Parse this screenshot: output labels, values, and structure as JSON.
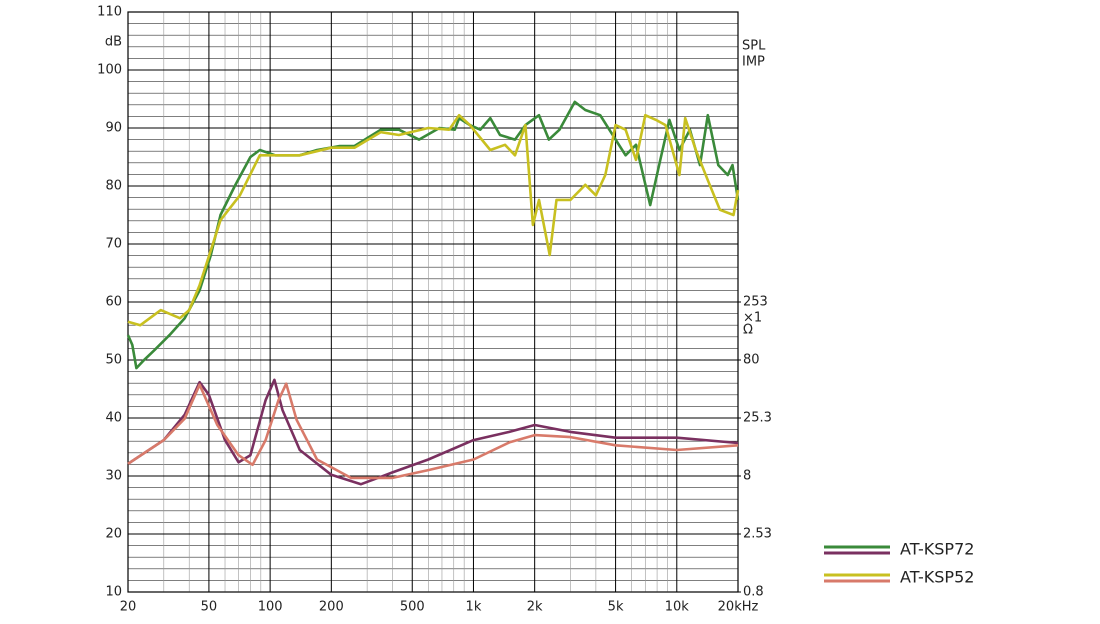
{
  "chart_data": {
    "type": "line",
    "xlog": true,
    "y2log": true,
    "grid": true,
    "xlim": [
      20,
      20000
    ],
    "ylim": [
      10,
      110
    ],
    "y2lim": [
      0.8,
      80000
    ],
    "ylabel": "dB",
    "y2label": "×1",
    "y2unit": "Ω",
    "axis_labels": [
      {
        "text": "SPL",
        "color": "#2f5f8f"
      },
      {
        "text": "IMP",
        "color": "#c89a60"
      }
    ],
    "yticks": [
      10,
      20,
      30,
      40,
      50,
      60,
      70,
      80,
      90,
      100,
      110
    ],
    "yminorticks": [
      12,
      14,
      16,
      18,
      22,
      24,
      26,
      28,
      32,
      34,
      36,
      38,
      42,
      44,
      46,
      48,
      52,
      54,
      56,
      58,
      62,
      64,
      66,
      68,
      72,
      74,
      76,
      78,
      82,
      84,
      86,
      88,
      92,
      94,
      96,
      98,
      102,
      104,
      106,
      108
    ],
    "y2ticks": [
      0.8,
      2.53,
      8,
      25.3,
      80,
      253
    ],
    "xticks": [
      20,
      50,
      100,
      200,
      500,
      {
        "value": 1000,
        "label": "1k"
      },
      {
        "value": 2000,
        "label": "2k"
      },
      {
        "value": 5000,
        "label": "5k"
      },
      {
        "value": 10000,
        "label": "10k"
      },
      {
        "value": 20000,
        "label": "20kHz"
      }
    ],
    "xminorticks": [
      30,
      40,
      60,
      70,
      80,
      90,
      300,
      400,
      600,
      700,
      800,
      900,
      3000,
      4000,
      6000,
      7000,
      8000,
      9000
    ],
    "series": [
      {
        "name": "AT-KSP72",
        "color": "#3a8a3a",
        "x": [
          20,
          21,
          22,
          24,
          27,
          32,
          38,
          45,
          51,
          57,
          67,
          80,
          89,
          106,
          140,
          170,
          220,
          260,
          350,
          430,
          540,
          680,
          810,
          850,
          960,
          1080,
          1210,
          1350,
          1600,
          1800,
          2100,
          2350,
          2650,
          3150,
          3550,
          4200,
          5000,
          5600,
          6300,
          7400,
          8300,
          9200,
          10300,
          11600,
          13000,
          14200,
          16000,
          17800,
          18800,
          20000
        ],
        "values": [
          54.3,
          52.6,
          48.6,
          50,
          51.7,
          54.3,
          57.2,
          62,
          68,
          75,
          80,
          85,
          86.2,
          85.3,
          85.3,
          86.2,
          86.9,
          86.9,
          89.7,
          89.7,
          88,
          90,
          89.7,
          91.7,
          90.5,
          89.7,
          91.7,
          88.8,
          88,
          90.5,
          92.2,
          88,
          89.7,
          94.5,
          93.1,
          92.2,
          88,
          85.3,
          87.1,
          76.7,
          84.5,
          91.4,
          86.2,
          89.7,
          83.6,
          92.2,
          83.6,
          81.9,
          83.6,
          77.6
        ]
      },
      {
        "name": "AT-KSP52",
        "color": "#c8c020",
        "x": [
          20,
          23,
          29,
          36,
          40,
          45,
          57,
          71,
          89,
          112,
          140,
          200,
          260,
          350,
          430,
          600,
          760,
          850,
          960,
          1210,
          1430,
          1600,
          1800,
          1960,
          2100,
          2370,
          2560,
          3000,
          3550,
          4000,
          4450,
          5000,
          5600,
          6300,
          7000,
          7900,
          8800,
          10300,
          11000,
          12400,
          14200,
          16300,
          19000,
          20000
        ],
        "values": [
          56.6,
          56,
          58.6,
          57.2,
          58.6,
          62.9,
          74.1,
          78.4,
          85.3,
          85.3,
          85.3,
          86.6,
          86.6,
          89.3,
          88.8,
          90,
          89.7,
          92.2,
          90.5,
          86.2,
          87.1,
          85.3,
          90.5,
          73.3,
          77.6,
          68.1,
          77.6,
          77.6,
          80.2,
          78.4,
          81.9,
          90.5,
          89.7,
          84.5,
          92.2,
          91.4,
          90.5,
          81.9,
          91.7,
          86.2,
          81,
          75.9,
          75,
          79.3
        ]
      }
    ],
    "impedance_series": [
      {
        "color": "#7a3060",
        "axis": "y2",
        "x": [
          20,
          30,
          38,
          45,
          50,
          60,
          70,
          80,
          95,
          105,
          115,
          140,
          200,
          280,
          400,
          600,
          1000,
          1500,
          2000,
          3000,
          5000,
          10000,
          20000
        ],
        "values": [
          10.2,
          16.3,
          27,
          51.5,
          40,
          16.3,
          10.5,
          12.1,
          36,
          54,
          29.6,
          13.4,
          8.2,
          6.8,
          8.6,
          11.1,
          16.3,
          19.2,
          22,
          19.2,
          17.1,
          17.1,
          15.4
        ]
      },
      {
        "color": "#d87a6a",
        "axis": "y2",
        "x": [
          20,
          30,
          38,
          45,
          55,
          70,
          82,
          95,
          110,
          120,
          135,
          170,
          250,
          400,
          600,
          1000,
          1500,
          2000,
          3000,
          5000,
          10000,
          20000
        ],
        "values": [
          10.2,
          16.3,
          25,
          49,
          22,
          12.1,
          10,
          16.3,
          36,
          50,
          24.4,
          11.1,
          7.7,
          7.7,
          9,
          11.1,
          15.6,
          18,
          17.3,
          14.7,
          13.4,
          14.7
        ]
      }
    ]
  }
}
